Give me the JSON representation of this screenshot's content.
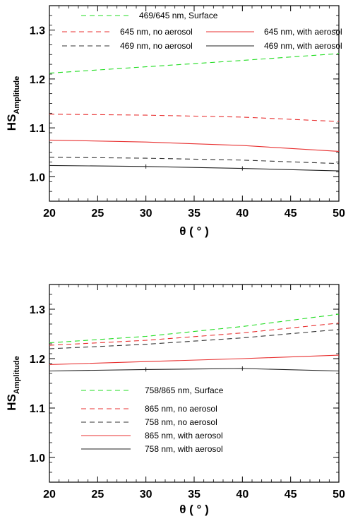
{
  "chart_data": [
    {
      "type": "line",
      "xlabel": "θ ( ° )",
      "ylabel": "HS",
      "ylabel_sub": "Amplitude",
      "xlim": [
        20,
        50
      ],
      "ylim": [
        0.95,
        1.35
      ],
      "xticks": [
        20,
        25,
        30,
        35,
        40,
        45,
        50
      ],
      "yticks": [
        1.0,
        1.1,
        1.2,
        1.3
      ],
      "ytick_labels": [
        "1.0",
        "1.1",
        "1.2",
        "1.3"
      ],
      "grid": false,
      "legend_position": "top",
      "series": [
        {
          "name": "469/645 nm, Surface",
          "color": "#22dd22",
          "style": "dashed",
          "x": [
            20,
            30,
            40,
            50
          ],
          "y": [
            1.212,
            1.225,
            1.238,
            1.252
          ]
        },
        {
          "name": "645 nm, no aerosol",
          "color": "#e83030",
          "style": "dashed",
          "x": [
            20,
            30,
            40,
            50
          ],
          "y": [
            1.128,
            1.126,
            1.122,
            1.113
          ]
        },
        {
          "name": "469 nm, no aerosol",
          "color": "#333333",
          "style": "dashed",
          "x": [
            20,
            30,
            40,
            50
          ],
          "y": [
            1.04,
            1.038,
            1.034,
            1.027
          ]
        },
        {
          "name": "645 nm, with aerosol",
          "color": "#e83030",
          "style": "solid",
          "x": [
            20,
            30,
            40,
            50
          ],
          "y": [
            1.075,
            1.071,
            1.064,
            1.052
          ]
        },
        {
          "name": "469 nm, with aerosol",
          "color": "#222222",
          "style": "solid",
          "x": [
            20,
            30,
            40,
            50
          ],
          "y": [
            1.023,
            1.021,
            1.017,
            1.012
          ]
        }
      ]
    },
    {
      "type": "line",
      "xlabel": "θ ( ° )",
      "ylabel": "HS",
      "ylabel_sub": "Amplitude",
      "xlim": [
        20,
        50
      ],
      "ylim": [
        0.95,
        1.35
      ],
      "xticks": [
        20,
        25,
        30,
        35,
        40,
        45,
        50
      ],
      "yticks": [
        1.0,
        1.1,
        1.2,
        1.3
      ],
      "ytick_labels": [
        "1.0",
        "1.1",
        "1.2",
        "1.3"
      ],
      "grid": false,
      "legend_position": "bottom-left",
      "series": [
        {
          "name": "758/865 nm, Surface",
          "color": "#22dd22",
          "style": "dashed",
          "x": [
            20,
            30,
            40,
            50
          ],
          "y": [
            1.232,
            1.245,
            1.265,
            1.29
          ]
        },
        {
          "name": "865 nm, no aerosol",
          "color": "#e83030",
          "style": "dashed",
          "x": [
            20,
            30,
            40,
            50
          ],
          "y": [
            1.227,
            1.237,
            1.252,
            1.272
          ]
        },
        {
          "name": "758 nm, no aerosol",
          "color": "#333333",
          "style": "dashed",
          "x": [
            20,
            30,
            40,
            50
          ],
          "y": [
            1.22,
            1.229,
            1.242,
            1.259
          ]
        },
        {
          "name": "865 nm, with aerosol",
          "color": "#e83030",
          "style": "solid",
          "x": [
            20,
            30,
            40,
            50
          ],
          "y": [
            1.188,
            1.194,
            1.2,
            1.207
          ]
        },
        {
          "name": "758 nm, with aerosol",
          "color": "#222222",
          "style": "solid",
          "x": [
            20,
            30,
            40,
            50
          ],
          "y": [
            1.175,
            1.178,
            1.18,
            1.175
          ]
        }
      ]
    }
  ]
}
